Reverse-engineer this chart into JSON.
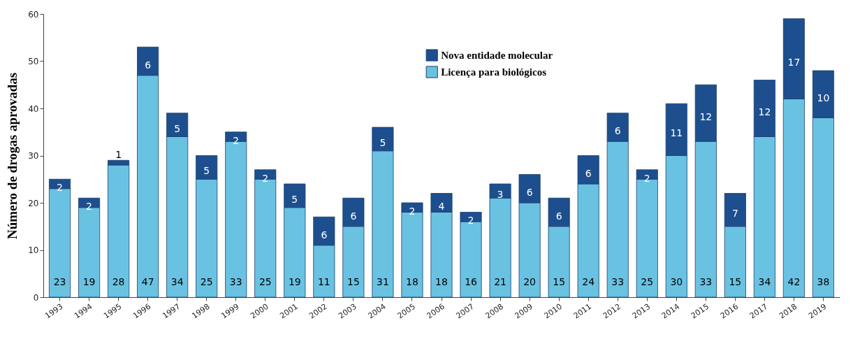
{
  "chart_data": {
    "type": "bar",
    "stacked": true,
    "ylabel": "Número de drogas aprovadas",
    "categories": [
      "1993",
      "1994",
      "1995",
      "1996",
      "1997",
      "1998",
      "1999",
      "2000",
      "2001",
      "2002",
      "2003",
      "2004",
      "2005",
      "2006",
      "2007",
      "2008",
      "2009",
      "2010",
      "2011",
      "2012",
      "2013",
      "2014",
      "2015",
      "2016",
      "2017",
      "2018",
      "2019"
    ],
    "series": [
      {
        "name": "Licença para biológicos",
        "color": "#6ac2e2",
        "values": [
          23,
          19,
          28,
          47,
          34,
          25,
          33,
          25,
          19,
          11,
          15,
          31,
          18,
          18,
          16,
          21,
          20,
          15,
          24,
          33,
          25,
          30,
          33,
          15,
          34,
          42,
          38
        ]
      },
      {
        "name": "Nova entidade molecular",
        "color": "#1d4f8e",
        "values": [
          2,
          2,
          1,
          6,
          5,
          5,
          2,
          2,
          5,
          6,
          6,
          5,
          2,
          4,
          2,
          3,
          6,
          6,
          6,
          6,
          2,
          11,
          12,
          7,
          12,
          17,
          10
        ]
      }
    ],
    "ylim": [
      0,
      60
    ],
    "yticks": [
      0,
      10,
      20,
      30,
      40,
      50,
      60
    ],
    "data_labels": true,
    "legend": "top",
    "grid": false
  }
}
